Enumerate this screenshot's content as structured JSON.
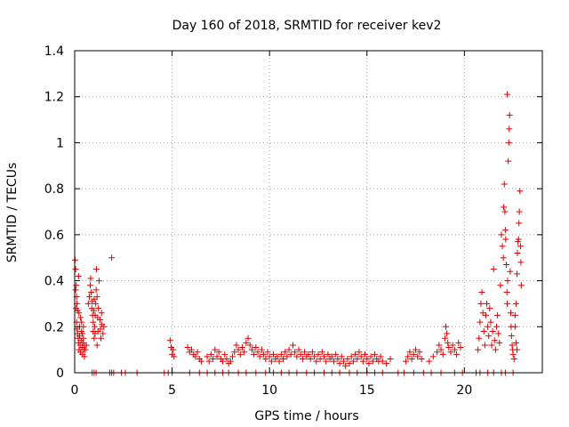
{
  "chart_data": {
    "type": "scatter",
    "title": "Day 160 of 2018, SRMTID for receiver kev2",
    "xlabel": "GPS time / hours",
    "ylabel": "SRMTID / TECUs",
    "xlim": [
      0,
      24
    ],
    "ylim": [
      0,
      1.4
    ],
    "xticks": [
      0,
      5,
      10,
      15,
      20
    ],
    "xtick_labels": [
      "0",
      "5",
      "10",
      "15",
      "20"
    ],
    "yticks": [
      0,
      0.2,
      0.4,
      0.6,
      0.8,
      1,
      1.2,
      1.4
    ],
    "ytick_labels": [
      "0",
      "0.2",
      "0.4",
      "0.6",
      "0.8",
      "1",
      "1.2",
      "1.4"
    ],
    "grid": true,
    "marker": "+",
    "marker_color": "#e00000",
    "series": [
      {
        "name": "SRMTID",
        "points": [
          [
            0.02,
            0.49
          ],
          [
            0.05,
            0.45
          ],
          [
            0.08,
            0.38
          ],
          [
            0.1,
            0.33
          ],
          [
            0.12,
            0.3
          ],
          [
            0.15,
            0.27
          ],
          [
            0.05,
            0.36
          ],
          [
            0.08,
            0.28
          ],
          [
            0.1,
            0.22
          ],
          [
            0.12,
            0.19
          ],
          [
            0.15,
            0.17
          ],
          [
            0.18,
            0.15
          ],
          [
            0.2,
            0.13
          ],
          [
            0.22,
            0.1
          ],
          [
            0.25,
            0.16
          ],
          [
            0.28,
            0.12
          ],
          [
            0.3,
            0.09
          ],
          [
            0.33,
            0.14
          ],
          [
            0.35,
            0.18
          ],
          [
            0.38,
            0.11
          ],
          [
            0.4,
            0.08
          ],
          [
            0.42,
            0.13
          ],
          [
            0.45,
            0.15
          ],
          [
            0.48,
            0.1
          ],
          [
            0.5,
            0.12
          ],
          [
            0.25,
            0.2
          ],
          [
            0.3,
            0.24
          ],
          [
            0.35,
            0.22
          ],
          [
            0.4,
            0.17
          ],
          [
            0.45,
            0.2
          ],
          [
            0.2,
            0.42
          ],
          [
            0.22,
            0.26
          ],
          [
            0.5,
            0.07
          ],
          [
            0.55,
            0.1
          ],
          [
            0.6,
            0.12
          ],
          [
            0.7,
            0.3
          ],
          [
            0.75,
            0.33
          ],
          [
            0.8,
            0.38
          ],
          [
            0.82,
            0.41
          ],
          [
            0.85,
            0.35
          ],
          [
            0.88,
            0.28
          ],
          [
            0.9,
            0.31
          ],
          [
            0.92,
            0.25
          ],
          [
            0.95,
            0.22
          ],
          [
            0.98,
            0.27
          ],
          [
            1.0,
            0.32
          ],
          [
            1.02,
            0.2
          ],
          [
            1.05,
            0.25
          ],
          [
            1.08,
            0.3
          ],
          [
            1.1,
            0.36
          ],
          [
            1.12,
            0.45
          ],
          [
            1.15,
            0.33
          ],
          [
            1.18,
            0.24
          ],
          [
            1.2,
            0.18
          ],
          [
            1.22,
            0.28
          ],
          [
            1.25,
            0.4
          ],
          [
            1.3,
            0.23
          ],
          [
            1.32,
            0.19
          ],
          [
            1.35,
            0.15
          ],
          [
            1.38,
            0.26
          ],
          [
            1.4,
            0.21
          ],
          [
            1.45,
            0.17
          ],
          [
            1.5,
            0.2
          ],
          [
            1.05,
            0.17
          ],
          [
            1.15,
            0.12
          ],
          [
            1.0,
            0.15
          ],
          [
            0.95,
            0.18
          ],
          [
            1.9,
            0.5
          ],
          [
            4.9,
            0.14
          ],
          [
            4.95,
            0.11
          ],
          [
            5.0,
            0.08
          ],
          [
            5.05,
            0.1
          ],
          [
            5.1,
            0.07
          ],
          [
            5.8,
            0.11
          ],
          [
            5.9,
            0.09
          ],
          [
            6.0,
            0.1
          ],
          [
            6.1,
            0.08
          ],
          [
            6.2,
            0.07
          ],
          [
            6.3,
            0.09
          ],
          [
            6.4,
            0.06
          ],
          [
            6.5,
            0.05
          ],
          [
            6.8,
            0.07
          ],
          [
            6.9,
            0.05
          ],
          [
            7.0,
            0.08
          ],
          [
            7.1,
            0.06
          ],
          [
            7.2,
            0.1
          ],
          [
            7.3,
            0.07
          ],
          [
            7.4,
            0.09
          ],
          [
            7.5,
            0.06
          ],
          [
            7.6,
            0.05
          ],
          [
            7.7,
            0.08
          ],
          [
            7.8,
            0.06
          ],
          [
            7.9,
            0.04
          ],
          [
            8.0,
            0.05
          ],
          [
            8.1,
            0.07
          ],
          [
            8.2,
            0.09
          ],
          [
            8.3,
            0.12
          ],
          [
            8.4,
            0.1
          ],
          [
            8.5,
            0.08
          ],
          [
            8.6,
            0.11
          ],
          [
            8.7,
            0.09
          ],
          [
            8.8,
            0.13
          ],
          [
            8.9,
            0.15
          ],
          [
            9.0,
            0.12
          ],
          [
            9.1,
            0.1
          ],
          [
            9.2,
            0.08
          ],
          [
            9.3,
            0.11
          ],
          [
            9.4,
            0.09
          ],
          [
            9.5,
            0.07
          ],
          [
            9.6,
            0.1
          ],
          [
            9.7,
            0.08
          ],
          [
            9.8,
            0.06
          ],
          [
            9.9,
            0.09
          ],
          [
            10.0,
            0.07
          ],
          [
            10.1,
            0.05
          ],
          [
            10.2,
            0.08
          ],
          [
            10.3,
            0.06
          ],
          [
            10.4,
            0.07
          ],
          [
            10.5,
            0.05
          ],
          [
            10.6,
            0.08
          ],
          [
            10.7,
            0.06
          ],
          [
            10.8,
            0.09
          ],
          [
            10.9,
            0.07
          ],
          [
            11.0,
            0.1
          ],
          [
            11.1,
            0.08
          ],
          [
            11.2,
            0.12
          ],
          [
            11.3,
            0.09
          ],
          [
            11.4,
            0.07
          ],
          [
            11.5,
            0.1
          ],
          [
            11.6,
            0.08
          ],
          [
            11.7,
            0.06
          ],
          [
            11.8,
            0.09
          ],
          [
            11.9,
            0.07
          ],
          [
            12.0,
            0.08
          ],
          [
            12.1,
            0.06
          ],
          [
            12.2,
            0.09
          ],
          [
            12.3,
            0.07
          ],
          [
            12.4,
            0.05
          ],
          [
            12.5,
            0.08
          ],
          [
            12.6,
            0.06
          ],
          [
            12.7,
            0.09
          ],
          [
            12.8,
            0.07
          ],
          [
            12.9,
            0.05
          ],
          [
            13.0,
            0.08
          ],
          [
            13.1,
            0.06
          ],
          [
            13.2,
            0.07
          ],
          [
            13.3,
            0.05
          ],
          [
            13.4,
            0.08
          ],
          [
            13.5,
            0.06
          ],
          [
            13.6,
            0.04
          ],
          [
            13.7,
            0.07
          ],
          [
            13.8,
            0.05
          ],
          [
            13.9,
            0.03
          ],
          [
            14.0,
            0.06
          ],
          [
            14.1,
            0.04
          ],
          [
            14.2,
            0.07
          ],
          [
            14.3,
            0.05
          ],
          [
            14.4,
            0.08
          ],
          [
            14.5,
            0.06
          ],
          [
            14.6,
            0.09
          ],
          [
            14.7,
            0.07
          ],
          [
            14.8,
            0.05
          ],
          [
            14.9,
            0.08
          ],
          [
            15.0,
            0.06
          ],
          [
            15.1,
            0.04
          ],
          [
            15.2,
            0.07
          ],
          [
            15.3,
            0.05
          ],
          [
            15.4,
            0.08
          ],
          [
            15.5,
            0.06
          ],
          [
            15.6,
            0.05
          ],
          [
            15.7,
            0.07
          ],
          [
            15.8,
            0.05
          ],
          [
            16.0,
            0.04
          ],
          [
            16.2,
            0.06
          ],
          [
            17.0,
            0.05
          ],
          [
            17.1,
            0.07
          ],
          [
            17.2,
            0.09
          ],
          [
            17.3,
            0.06
          ],
          [
            17.4,
            0.08
          ],
          [
            17.5,
            0.1
          ],
          [
            17.6,
            0.07
          ],
          [
            17.7,
            0.09
          ],
          [
            17.8,
            0.06
          ],
          [
            18.2,
            0.05
          ],
          [
            18.4,
            0.07
          ],
          [
            18.6,
            0.09
          ],
          [
            18.7,
            0.12
          ],
          [
            18.8,
            0.1
          ],
          [
            18.9,
            0.08
          ],
          [
            19.0,
            0.15
          ],
          [
            19.05,
            0.2
          ],
          [
            19.1,
            0.17
          ],
          [
            19.15,
            0.13
          ],
          [
            19.2,
            0.11
          ],
          [
            19.3,
            0.09
          ],
          [
            19.4,
            0.12
          ],
          [
            19.5,
            0.1
          ],
          [
            19.6,
            0.08
          ],
          [
            19.7,
            0.13
          ],
          [
            19.8,
            0.11
          ],
          [
            20.7,
            0.1
          ],
          [
            20.75,
            0.15
          ],
          [
            20.8,
            0.22
          ],
          [
            20.85,
            0.3
          ],
          [
            20.9,
            0.35
          ],
          [
            20.95,
            0.26
          ],
          [
            21.0,
            0.18
          ],
          [
            21.05,
            0.12
          ],
          [
            21.1,
            0.25
          ],
          [
            21.15,
            0.3
          ],
          [
            21.2,
            0.2
          ],
          [
            21.25,
            0.16
          ],
          [
            21.3,
            0.28
          ],
          [
            21.35,
            0.22
          ],
          [
            21.4,
            0.12
          ],
          [
            21.45,
            0.18
          ],
          [
            21.5,
            0.45
          ],
          [
            21.55,
            0.14
          ],
          [
            21.6,
            0.1
          ],
          [
            21.65,
            0.2
          ],
          [
            21.7,
            0.25
          ],
          [
            21.75,
            0.17
          ],
          [
            21.8,
            0.13
          ],
          [
            21.85,
            0.38
          ],
          [
            21.9,
            0.6
          ],
          [
            21.95,
            0.55
          ],
          [
            22.0,
            0.5
          ],
          [
            22.02,
            0.72
          ],
          [
            22.05,
            0.82
          ],
          [
            22.08,
            0.7
          ],
          [
            22.1,
            0.62
          ],
          [
            22.12,
            0.58
          ],
          [
            22.15,
            0.47
          ],
          [
            22.18,
            0.35
          ],
          [
            22.2,
            0.3
          ],
          [
            22.22,
            0.4
          ],
          [
            22.25,
            0.92
          ],
          [
            22.28,
            1.0
          ],
          [
            22.3,
            1.06
          ],
          [
            22.32,
            1.12
          ],
          [
            22.2,
            1.21
          ],
          [
            22.35,
            0.44
          ],
          [
            22.38,
            0.26
          ],
          [
            22.4,
            0.2
          ],
          [
            22.42,
            0.16
          ],
          [
            22.45,
            0.12
          ],
          [
            22.48,
            0.1
          ],
          [
            22.5,
            0.08
          ],
          [
            22.55,
            0.06
          ],
          [
            22.6,
            0.25
          ],
          [
            22.65,
            0.3
          ],
          [
            22.7,
            0.43
          ],
          [
            22.72,
            0.52
          ],
          [
            22.75,
            0.57
          ],
          [
            22.78,
            0.58
          ],
          [
            22.8,
            0.65
          ],
          [
            22.82,
            0.7
          ],
          [
            22.85,
            0.79
          ],
          [
            22.88,
            0.55
          ],
          [
            22.9,
            0.48
          ],
          [
            22.92,
            0.38
          ],
          [
            22.6,
            0.2
          ],
          [
            22.65,
            0.13
          ],
          [
            22.7,
            0.1
          ]
        ],
        "zero_points_x": [
          0.9,
          1.0,
          1.1,
          1.8,
          1.9,
          2.0,
          2.4,
          2.6,
          3.2,
          4.6,
          4.8,
          5.0,
          5.9,
          6.4,
          6.8,
          7.2,
          7.6,
          7.9,
          8.4,
          8.8,
          9.3,
          9.8,
          10.2,
          10.6,
          11.0,
          11.4,
          11.9,
          12.3,
          12.8,
          13.2,
          13.6,
          14.1,
          14.5,
          15.0,
          15.4,
          15.8,
          16.6,
          16.9,
          17.4,
          17.9,
          18.3,
          18.8,
          19.5,
          19.9,
          20.6,
          20.8,
          21.2,
          21.5,
          21.9,
          22.1,
          22.5
        ]
      }
    ]
  }
}
